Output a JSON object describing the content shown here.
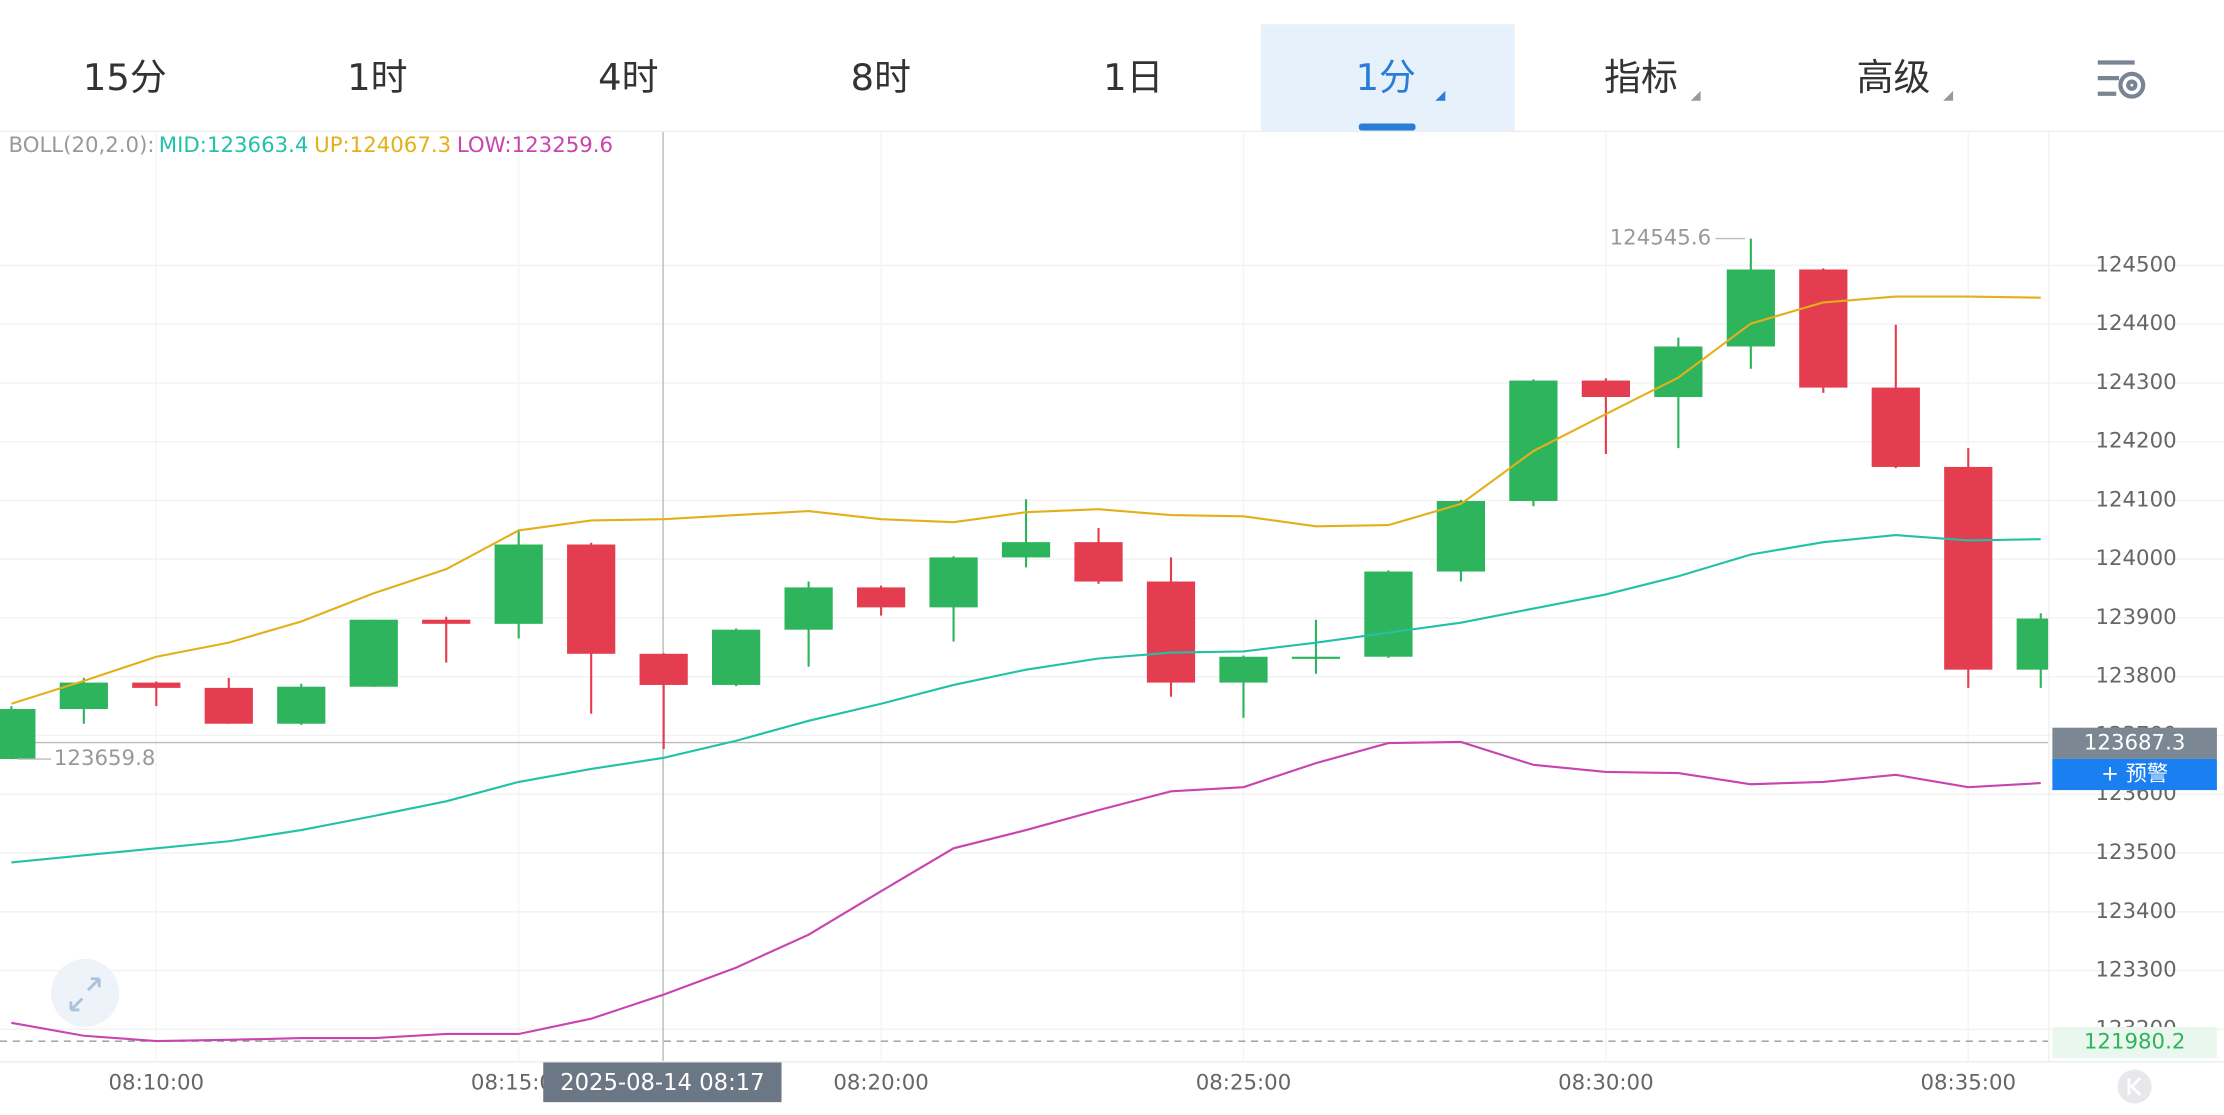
{
  "tabs": [
    "15分",
    "1时",
    "4时",
    "8时",
    "1日",
    "1分",
    "指标",
    "高级"
  ],
  "chart_data": {
    "type": "candlestick",
    "indicator": {
      "label": "BOLL(20,2.0):",
      "items": [
        {
          "text": "MID:123663.4",
          "color": "#22c1a8"
        },
        {
          "text": "UP:124067.3",
          "color": "#e3b01a"
        },
        {
          "text": "LOW:123259.6",
          "color": "#c844ae"
        }
      ]
    },
    "categories": [
      null,
      null,
      "08:10:00",
      null,
      null,
      null,
      null,
      "08:15:00",
      null,
      null,
      null,
      null,
      "08:20:00",
      null,
      null,
      null,
      null,
      "08:25:00",
      null,
      null,
      null,
      null,
      "08:30:00",
      null,
      null,
      null,
      null,
      "08:35:00",
      null
    ],
    "open": [
      123660,
      123745,
      123790,
      123781,
      123720,
      123783,
      123897,
      123890,
      124025,
      123839,
      123786,
      123880,
      123952,
      123918,
      124003,
      124029,
      123962,
      123790,
      123834,
      123834,
      123979,
      124099,
      124304,
      124276,
      124362,
      124493,
      124292,
      124157,
      123812
    ],
    "high": [
      123750,
      123798,
      123792,
      123798,
      123788,
      123897,
      123902,
      124051,
      124028,
      123840,
      123882,
      123962,
      123955,
      124005,
      124102,
      124053,
      124003,
      123836,
      123897,
      123981,
      124101,
      124306,
      124308,
      124377,
      124545.6,
      124495,
      124399,
      124189,
      123908
    ],
    "low": [
      123659.8,
      123720,
      123750,
      123720,
      123718,
      123783,
      123824,
      123865,
      123737,
      123677,
      123784,
      123817,
      123904,
      123860,
      123986,
      123958,
      123766,
      123730,
      123805,
      123832,
      123962,
      124090,
      124179,
      124189,
      124324,
      124283,
      124155,
      123781,
      123781
    ],
    "close": [
      123745,
      123790,
      123781,
      123720,
      123783,
      123897,
      123890,
      124025,
      123839,
      123786,
      123880,
      123952,
      123918,
      124003,
      124029,
      123962,
      123790,
      123834,
      123834,
      123979,
      124099,
      124304,
      124276,
      124362,
      124493,
      124292,
      124157,
      123812,
      123899
    ],
    "up_color": "#2db45c",
    "down_color": "#e43d4f",
    "series": [
      {
        "color": "#22c1a8",
        "values": [
          123484,
          123496,
          123508,
          123520,
          123539,
          123563,
          123588,
          123621,
          123643,
          123662,
          123691,
          123725,
          123754,
          123786,
          123812,
          123831,
          123841,
          123843,
          123858,
          123875,
          123892,
          123916,
          123940,
          123971,
          124008,
          124029,
          124041,
          124032,
          124034
        ]
      },
      {
        "color": "#e3b01a",
        "values": [
          123754,
          123793,
          123834,
          123858,
          123894,
          123942,
          123983,
          124049,
          124066,
          124068,
          124075,
          124082,
          124068,
          124063,
          124080,
          124085,
          124075,
          124073,
          124056,
          124058,
          124094,
          124184,
          124247,
          124309,
          124401,
          124437,
          124447,
          124447,
          124445
        ]
      },
      {
        "color": "#c844ae",
        "values": [
          123211,
          123189,
          123180,
          123182,
          123185,
          123185,
          123192,
          123192,
          123218,
          123259,
          123305,
          123361,
          123435,
          123508,
          123539,
          123573,
          123605,
          123612,
          123653,
          123687,
          123689,
          123650,
          123638,
          123636,
          123617,
          123621,
          123633,
          123612,
          123619
        ]
      }
    ],
    "ylim": [
      123146,
      124727
    ],
    "yticks": [
      123200,
      123300,
      123400,
      123500,
      123600,
      123700,
      123800,
      123900,
      124000,
      124100,
      124200,
      124300,
      124400,
      124500
    ],
    "grid": true,
    "crosshair": {
      "price": "123687.3",
      "time": "2025-08-14 08:17"
    },
    "alert_button": "+ 预警",
    "dashed_level": "121980.2"
  }
}
